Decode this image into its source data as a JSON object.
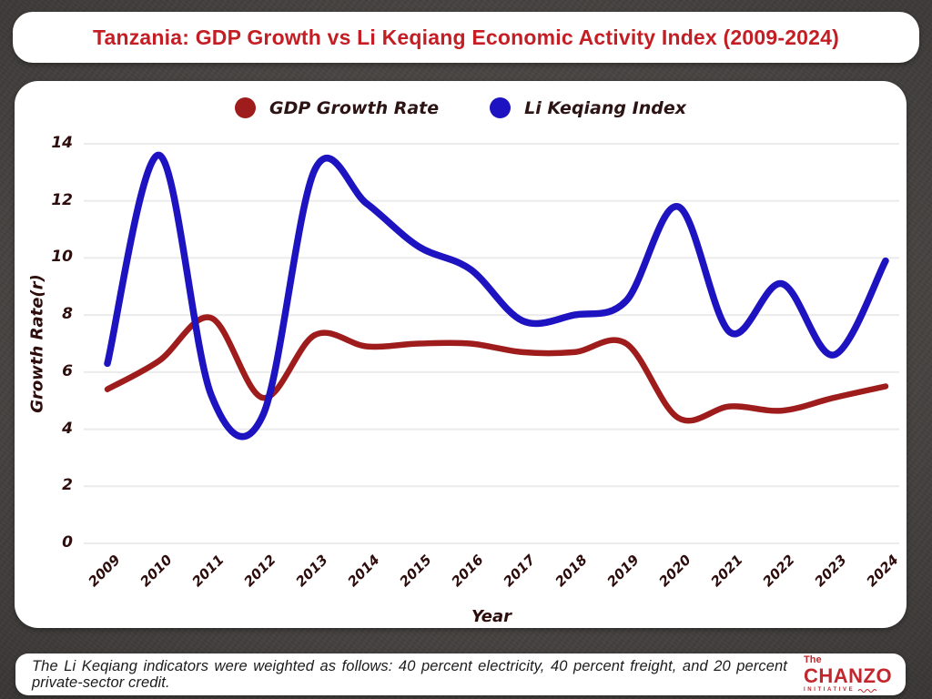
{
  "title": "Tanzania: GDP Growth vs Li Keqiang Economic Activity Index (2009-2024)",
  "chart_data": {
    "type": "line",
    "x": [
      2009,
      2010,
      2011,
      2012,
      2013,
      2014,
      2015,
      2016,
      2017,
      2018,
      2019,
      2020,
      2021,
      2022,
      2023,
      2024
    ],
    "series": [
      {
        "name": "GDP Growth Rate",
        "color": "#9e1c1c",
        "values": [
          5.4,
          6.4,
          7.9,
          5.1,
          7.3,
          6.9,
          7.0,
          7.0,
          6.7,
          6.7,
          7.0,
          4.4,
          4.8,
          4.65,
          5.1,
          5.5
        ]
      },
      {
        "name": "Li Keqiang Index",
        "color": "#1e13c0",
        "values": [
          6.3,
          13.6,
          5.2,
          4.5,
          13.1,
          11.9,
          10.4,
          9.6,
          7.8,
          8.0,
          8.5,
          11.8,
          7.4,
          9.1,
          6.6,
          9.9
        ]
      }
    ],
    "xlabel": "Year",
    "ylabel": "Growth Rate(r)",
    "ylim": [
      0,
      14
    ],
    "yticks": [
      0,
      2,
      4,
      6,
      8,
      10,
      12,
      14
    ],
    "grid": "horizontal-only",
    "gridline_color": "#ebebeb",
    "legend_position": "top-center"
  },
  "legend": {
    "items": [
      {
        "label": "GDP Growth Rate",
        "color": "#9e1c1c"
      },
      {
        "label": "Li Keqiang Index",
        "color": "#1e13c0"
      }
    ]
  },
  "footer": {
    "note": "The Li Keqiang indicators were weighted as follows: 40 percent electricity, 40 percent freight, and 20 percent private-sector credit.",
    "logo": {
      "the": "The",
      "name": "CHANZO",
      "sub": "INITIATIVE"
    }
  },
  "colors": {
    "title_red": "#c41e24",
    "axis_text": "#2e0d0d",
    "background": "#464341",
    "card": "#ffffff",
    "logo_red": "#c1272d"
  }
}
